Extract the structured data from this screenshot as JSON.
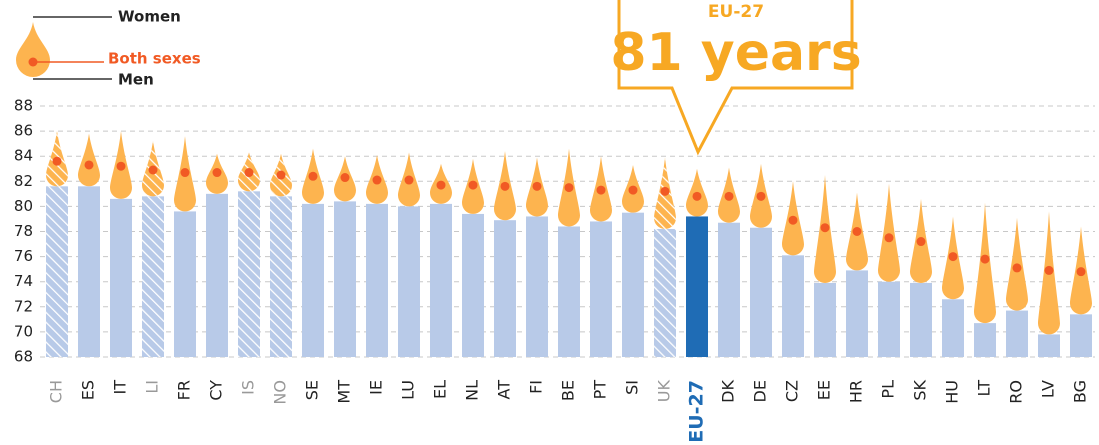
{
  "chart_data": {
    "type": "drop",
    "categories": [
      "CH",
      "ES",
      "IT",
      "LI",
      "FR",
      "CY",
      "IS",
      "NO",
      "SE",
      "MT",
      "IE",
      "LU",
      "EL",
      "NL",
      "AT",
      "FI",
      "BE",
      "PT",
      "SI",
      "UK",
      "EU-27",
      "DK",
      "DE",
      "CZ",
      "EE",
      "HR",
      "PL",
      "SK",
      "HU",
      "LT",
      "RO",
      "LV",
      "BG"
    ],
    "hatched": [
      true,
      false,
      false,
      true,
      false,
      false,
      true,
      true,
      false,
      false,
      false,
      false,
      false,
      false,
      false,
      false,
      false,
      false,
      false,
      true,
      false,
      false,
      false,
      false,
      false,
      false,
      false,
      false,
      false,
      false,
      false,
      false,
      false
    ],
    "highlight": [
      false,
      false,
      false,
      false,
      false,
      false,
      false,
      false,
      false,
      false,
      false,
      false,
      false,
      false,
      false,
      false,
      false,
      false,
      false,
      false,
      true,
      false,
      false,
      false,
      false,
      false,
      false,
      false,
      false,
      false,
      false,
      false,
      false
    ],
    "series": [
      {
        "name": "Women",
        "color": "#fdb44f",
        "values": [
          86.0,
          85.8,
          86.0,
          85.2,
          85.6,
          84.2,
          84.3,
          84.2,
          84.6,
          84.0,
          84.1,
          84.3,
          83.4,
          83.8,
          84.4,
          83.9,
          84.6,
          84.0,
          83.3,
          83.9,
          83.0,
          83.1,
          83.4,
          82.0,
          82.5,
          81.1,
          81.8,
          80.6,
          79.2,
          80.3,
          79.1,
          79.6,
          78.4
        ]
      },
      {
        "name": "Both sexes",
        "color": "#f15a24",
        "values": [
          83.6,
          83.3,
          83.2,
          82.9,
          82.7,
          82.7,
          82.7,
          82.5,
          82.4,
          82.3,
          82.1,
          82.1,
          81.7,
          81.7,
          81.6,
          81.6,
          81.5,
          81.3,
          81.3,
          81.2,
          80.8,
          80.8,
          80.8,
          78.9,
          78.3,
          78.0,
          77.5,
          77.2,
          76.0,
          75.8,
          75.1,
          74.9,
          74.8
        ]
      },
      {
        "name": "Men",
        "color": "#b8cae8",
        "highlight_color": "#1f6cb5",
        "values": [
          81.6,
          81.6,
          80.6,
          80.8,
          79.6,
          81.0,
          81.2,
          80.8,
          80.2,
          80.4,
          80.2,
          80.0,
          80.2,
          79.4,
          78.9,
          79.2,
          78.4,
          78.8,
          79.5,
          78.2,
          79.2,
          78.7,
          78.3,
          76.1,
          73.9,
          74.9,
          74.0,
          73.9,
          72.6,
          70.7,
          71.7,
          69.8,
          71.4
        ]
      }
    ],
    "annotation": {
      "label": "EU-27",
      "text": "81 years"
    },
    "ylim": [
      68,
      88
    ],
    "yticks": [
      68,
      70,
      72,
      74,
      76,
      78,
      80,
      82,
      84,
      86,
      88
    ],
    "grid": true
  }
}
